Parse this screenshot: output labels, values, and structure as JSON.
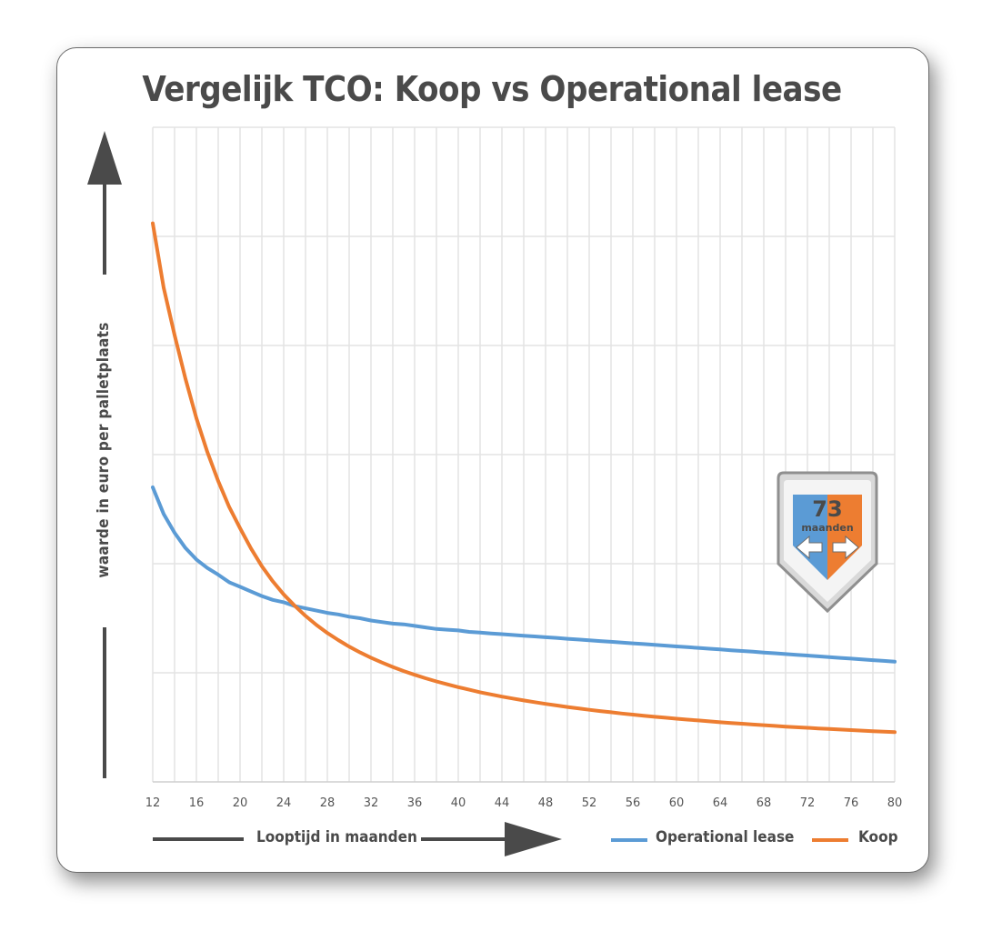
{
  "chart_data": {
    "type": "line",
    "title": "Vergelijk TCO: Koop vs Operational lease",
    "xlabel": "Looptijd in maanden",
    "ylabel": "waarde in euro  per palletplaats",
    "x_ticks": [
      "12",
      "16",
      "20",
      "24",
      "28",
      "32",
      "36",
      "40",
      "44",
      "48",
      "52",
      "56",
      "60",
      "64",
      "68",
      "72",
      "76",
      "80"
    ],
    "x": [
      12,
      13,
      14,
      15,
      16,
      17,
      18,
      19,
      20,
      21,
      22,
      23,
      24,
      25,
      26,
      27,
      28,
      29,
      30,
      31,
      32,
      33,
      34,
      35,
      36,
      37,
      38,
      39,
      40,
      41,
      42,
      43,
      44,
      45,
      46,
      47,
      48,
      49,
      50,
      51,
      52,
      53,
      54,
      55,
      56,
      57,
      58,
      59,
      60,
      61,
      62,
      63,
      64,
      65,
      66,
      67,
      68,
      69,
      70,
      71,
      72,
      73,
      74,
      75,
      76,
      77,
      78,
      79,
      80
    ],
    "xlim": [
      12,
      80
    ],
    "ylim": [
      0,
      6
    ],
    "y_ticks_labeled": false,
    "grid": true,
    "legend_position": "bottom-right",
    "series": [
      {
        "name": "Operational lease",
        "color": "#5b9bd5",
        "values": [
          2.7,
          2.455,
          2.283,
          2.143,
          2.038,
          1.961,
          1.899,
          1.83,
          1.788,
          1.745,
          1.703,
          1.668,
          1.647,
          1.612,
          1.591,
          1.57,
          1.549,
          1.535,
          1.514,
          1.5,
          1.479,
          1.465,
          1.451,
          1.444,
          1.43,
          1.416,
          1.402,
          1.395,
          1.388,
          1.375,
          1.368,
          1.361,
          1.354,
          1.347,
          1.34,
          1.333,
          1.326,
          1.32,
          1.312,
          1.305,
          1.298,
          1.291,
          1.284,
          1.277,
          1.27,
          1.263,
          1.256,
          1.249,
          1.242,
          1.235,
          1.228,
          1.221,
          1.214,
          1.207,
          1.2,
          1.193,
          1.186,
          1.179,
          1.172,
          1.165,
          1.158,
          1.151,
          1.144,
          1.137,
          1.13,
          1.123,
          1.116,
          1.109,
          1.102
        ]
      },
      {
        "name": "Koop",
        "color": "#ed7d31",
        "values": [
          5.12,
          4.53,
          4.096,
          3.694,
          3.333,
          3.024,
          2.757,
          2.521,
          2.326,
          2.14,
          1.977,
          1.838,
          1.718,
          1.615,
          1.522,
          1.438,
          1.365,
          1.3,
          1.24,
          1.187,
          1.138,
          1.094,
          1.053,
          1.016,
          0.982,
          0.95,
          0.921,
          0.894,
          0.868,
          0.845,
          0.822,
          0.802,
          0.782,
          0.764,
          0.747,
          0.731,
          0.715,
          0.701,
          0.687,
          0.674,
          0.661,
          0.649,
          0.638,
          0.627,
          0.617,
          0.607,
          0.597,
          0.588,
          0.579,
          0.571,
          0.563,
          0.555,
          0.547,
          0.54,
          0.533,
          0.526,
          0.52,
          0.513,
          0.507,
          0.501,
          0.496,
          0.49,
          0.485,
          0.48,
          0.475,
          0.47,
          0.465,
          0.46,
          0.456
        ]
      }
    ]
  },
  "badge": {
    "number": "73",
    "text": "maanden",
    "color_left": "#5b9bd5",
    "color_right": "#ed7d31",
    "icon": "left-right-arrows-icon"
  },
  "arrows": {
    "color": "#4a4a4a"
  }
}
